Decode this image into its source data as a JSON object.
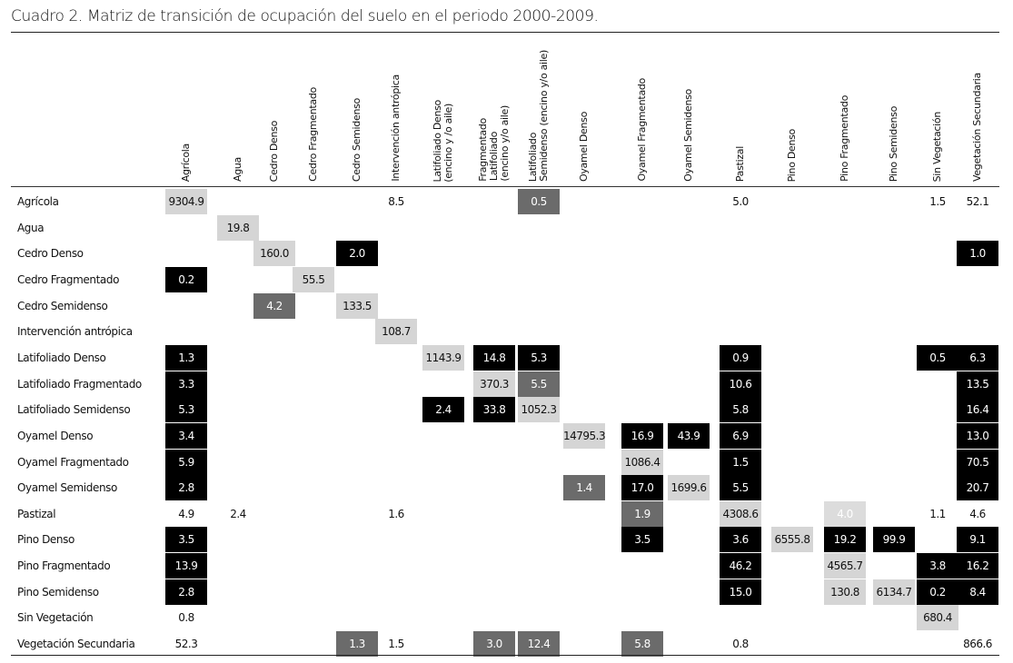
{
  "title": "Cuadro 2. Matriz de transición de ocupación del suelo en el periodo 2000-2009.",
  "columns": [
    {
      "lines": [
        "Agrícola"
      ]
    },
    {
      "lines": [
        "Agua"
      ]
    },
    {
      "lines": [
        "Cedro Denso"
      ]
    },
    {
      "lines": [
        "Cedro Fragmentado"
      ]
    },
    {
      "lines": [
        "Cedro Semidenso"
      ]
    },
    {
      "lines": [
        "Intervención antrópica"
      ]
    },
    {
      "lines": [
        "Latifoliado Denso",
        "(encino y /o aile)"
      ]
    },
    {
      "lines": [
        "Fragmentado",
        "Latifoliado",
        "(encino y/o aile)"
      ]
    },
    {
      "lines": [
        "Latifoliado",
        "Semidenso (encino y/o aile)"
      ]
    },
    {
      "lines": [
        "Oyamel Denso"
      ]
    },
    {
      "lines": [
        "Oyamel Fragmentado"
      ]
    },
    {
      "lines": [
        "Oyamel Semidenso"
      ]
    },
    {
      "lines": [
        "Pastizal"
      ]
    },
    {
      "lines": [
        "Pino Denso"
      ]
    },
    {
      "lines": [
        "Pino Fragmentado"
      ]
    },
    {
      "lines": [
        "Pino Semidenso"
      ]
    },
    {
      "lines": [
        "Sin Vegetación"
      ]
    },
    {
      "lines": [
        "Vegetación Secundaria"
      ]
    }
  ],
  "rows": [
    {
      "label": "Agrícola",
      "cells": [
        {
          "col": 0,
          "value": "9304.9",
          "shade": "light"
        },
        {
          "col": 5,
          "value": "8.5",
          "shade": "none"
        },
        {
          "col": 8,
          "value": "0.5",
          "shade": "dark"
        },
        {
          "col": 12,
          "value": "5.0",
          "shade": "none"
        },
        {
          "col": 16,
          "value": "1.5",
          "shade": "none"
        },
        {
          "col": 17,
          "value": "52.1",
          "shade": "none"
        }
      ]
    },
    {
      "label": "Agua",
      "cells": [
        {
          "col": 1,
          "value": "19.8",
          "shade": "light"
        }
      ]
    },
    {
      "label": "Cedro Denso",
      "cells": [
        {
          "col": 2,
          "value": "160.0",
          "shade": "light"
        },
        {
          "col": 4,
          "value": "2.0",
          "shade": "black"
        },
        {
          "col": 17,
          "value": "1.0",
          "shade": "black"
        }
      ]
    },
    {
      "label": "Cedro Fragmentado",
      "cells": [
        {
          "col": 0,
          "value": "0.2",
          "shade": "black"
        },
        {
          "col": 3,
          "value": "55.5",
          "shade": "light"
        }
      ]
    },
    {
      "label": "Cedro Semidenso",
      "cells": [
        {
          "col": 2,
          "value": "4.2",
          "shade": "dark"
        },
        {
          "col": 4,
          "value": "133.5",
          "shade": "light"
        }
      ]
    },
    {
      "label": "Intervención antrópica",
      "cells": [
        {
          "col": 5,
          "value": "108.7",
          "shade": "light"
        }
      ]
    },
    {
      "label": "Latifoliado Denso",
      "cells": [
        {
          "col": 0,
          "value": "1.3",
          "shade": "black"
        },
        {
          "col": 6,
          "value": "1143.9",
          "shade": "light"
        },
        {
          "col": 7,
          "value": "14.8",
          "shade": "black"
        },
        {
          "col": 8,
          "value": "5.3",
          "shade": "black"
        },
        {
          "col": 12,
          "value": "0.9",
          "shade": "black"
        },
        {
          "col": 16,
          "value": "0.5",
          "shade": "black"
        },
        {
          "col": 17,
          "value": "6.3",
          "shade": "black"
        }
      ]
    },
    {
      "label": "Latifoliado Fragmentado",
      "cells": [
        {
          "col": 0,
          "value": "3.3",
          "shade": "black"
        },
        {
          "col": 7,
          "value": "370.3",
          "shade": "light"
        },
        {
          "col": 8,
          "value": "5.5",
          "shade": "dark"
        },
        {
          "col": 12,
          "value": "10.6",
          "shade": "black"
        },
        {
          "col": 17,
          "value": "13.5",
          "shade": "black"
        }
      ]
    },
    {
      "label": "Latifoliado Semidenso",
      "cells": [
        {
          "col": 0,
          "value": "5.3",
          "shade": "black"
        },
        {
          "col": 6,
          "value": "2.4",
          "shade": "black"
        },
        {
          "col": 7,
          "value": "33.8",
          "shade": "black"
        },
        {
          "col": 8,
          "value": "1052.3",
          "shade": "light"
        },
        {
          "col": 12,
          "value": "5.8",
          "shade": "black"
        },
        {
          "col": 17,
          "value": "16.4",
          "shade": "black"
        }
      ]
    },
    {
      "label": "Oyamel Denso",
      "cells": [
        {
          "col": 0,
          "value": "3.4",
          "shade": "black"
        },
        {
          "col": 9,
          "value": "14795.3",
          "shade": "light"
        },
        {
          "col": 10,
          "value": "16.9",
          "shade": "black"
        },
        {
          "col": 11,
          "value": "43.9",
          "shade": "black"
        },
        {
          "col": 12,
          "value": "6.9",
          "shade": "black"
        },
        {
          "col": 17,
          "value": "13.0",
          "shade": "black"
        }
      ]
    },
    {
      "label": "Oyamel Fragmentado",
      "cells": [
        {
          "col": 0,
          "value": "5.9",
          "shade": "black"
        },
        {
          "col": 10,
          "value": "1086.4",
          "shade": "light"
        },
        {
          "col": 12,
          "value": "1.5",
          "shade": "black"
        },
        {
          "col": 17,
          "value": "70.5",
          "shade": "black"
        }
      ]
    },
    {
      "label": "Oyamel Semidenso",
      "cells": [
        {
          "col": 0,
          "value": "2.8",
          "shade": "black"
        },
        {
          "col": 9,
          "value": "1.4",
          "shade": "dark"
        },
        {
          "col": 10,
          "value": "17.0",
          "shade": "black"
        },
        {
          "col": 11,
          "value": "1699.6",
          "shade": "light"
        },
        {
          "col": 12,
          "value": "5.5",
          "shade": "black"
        },
        {
          "col": 17,
          "value": "20.7",
          "shade": "black"
        }
      ]
    },
    {
      "label": "Pastizal",
      "cells": [
        {
          "col": 0,
          "value": "4.9",
          "shade": "none"
        },
        {
          "col": 1,
          "value": "2.4",
          "shade": "none"
        },
        {
          "col": 5,
          "value": "1.6",
          "shade": "none"
        },
        {
          "col": 10,
          "value": "1.9",
          "shade": "dark"
        },
        {
          "col": 12,
          "value": "4308.6",
          "shade": "light"
        },
        {
          "col": 14,
          "value": "4.0",
          "shade": "faint"
        },
        {
          "col": 16,
          "value": "1.1",
          "shade": "none"
        },
        {
          "col": 17,
          "value": "4.6",
          "shade": "none"
        }
      ]
    },
    {
      "label": "Pino Denso",
      "cells": [
        {
          "col": 0,
          "value": "3.5",
          "shade": "black"
        },
        {
          "col": 10,
          "value": "3.5",
          "shade": "black"
        },
        {
          "col": 12,
          "value": "3.6",
          "shade": "black"
        },
        {
          "col": 13,
          "value": "6555.8",
          "shade": "light"
        },
        {
          "col": 14,
          "value": "19.2",
          "shade": "black"
        },
        {
          "col": 15,
          "value": "99.9",
          "shade": "black"
        },
        {
          "col": 17,
          "value": "9.1",
          "shade": "black"
        }
      ]
    },
    {
      "label": "Pino Fragmentado",
      "cells": [
        {
          "col": 0,
          "value": "13.9",
          "shade": "black"
        },
        {
          "col": 12,
          "value": "46.2",
          "shade": "black"
        },
        {
          "col": 14,
          "value": "4565.7",
          "shade": "light"
        },
        {
          "col": 16,
          "value": "3.8",
          "shade": "black"
        },
        {
          "col": 17,
          "value": "16.2",
          "shade": "black"
        }
      ]
    },
    {
      "label": "Pino Semidenso",
      "cells": [
        {
          "col": 0,
          "value": "2.8",
          "shade": "black"
        },
        {
          "col": 12,
          "value": "15.0",
          "shade": "black"
        },
        {
          "col": 14,
          "value": "130.8",
          "shade": "light"
        },
        {
          "col": 15,
          "value": "6134.7",
          "shade": "light"
        },
        {
          "col": 16,
          "value": "0.2",
          "shade": "black"
        },
        {
          "col": 17,
          "value": "8.4",
          "shade": "black"
        }
      ]
    },
    {
      "label": "Sin Vegetación",
      "cells": [
        {
          "col": 0,
          "value": "0.8",
          "shade": "none"
        },
        {
          "col": 16,
          "value": "680.4",
          "shade": "light"
        }
      ]
    },
    {
      "label": "Vegetación Secundaria",
      "cells": [
        {
          "col": 0,
          "value": "52.3",
          "shade": "none"
        },
        {
          "col": 4,
          "value": "1.3",
          "shade": "dark"
        },
        {
          "col": 5,
          "value": "1.5",
          "shade": "none"
        },
        {
          "col": 7,
          "value": "3.0",
          "shade": "dark"
        },
        {
          "col": 8,
          "value": "12.4",
          "shade": "dark"
        },
        {
          "col": 10,
          "value": "5.8",
          "shade": "dark"
        },
        {
          "col": 12,
          "value": "0.8",
          "shade": "none"
        },
        {
          "col": 17,
          "value": "866.6",
          "shade": "none"
        }
      ]
    }
  ],
  "colors": {
    "black": "#000000",
    "dark": "#6b6b6b",
    "light": "#d5d5d5",
    "faint": "#dcdcdc"
  }
}
